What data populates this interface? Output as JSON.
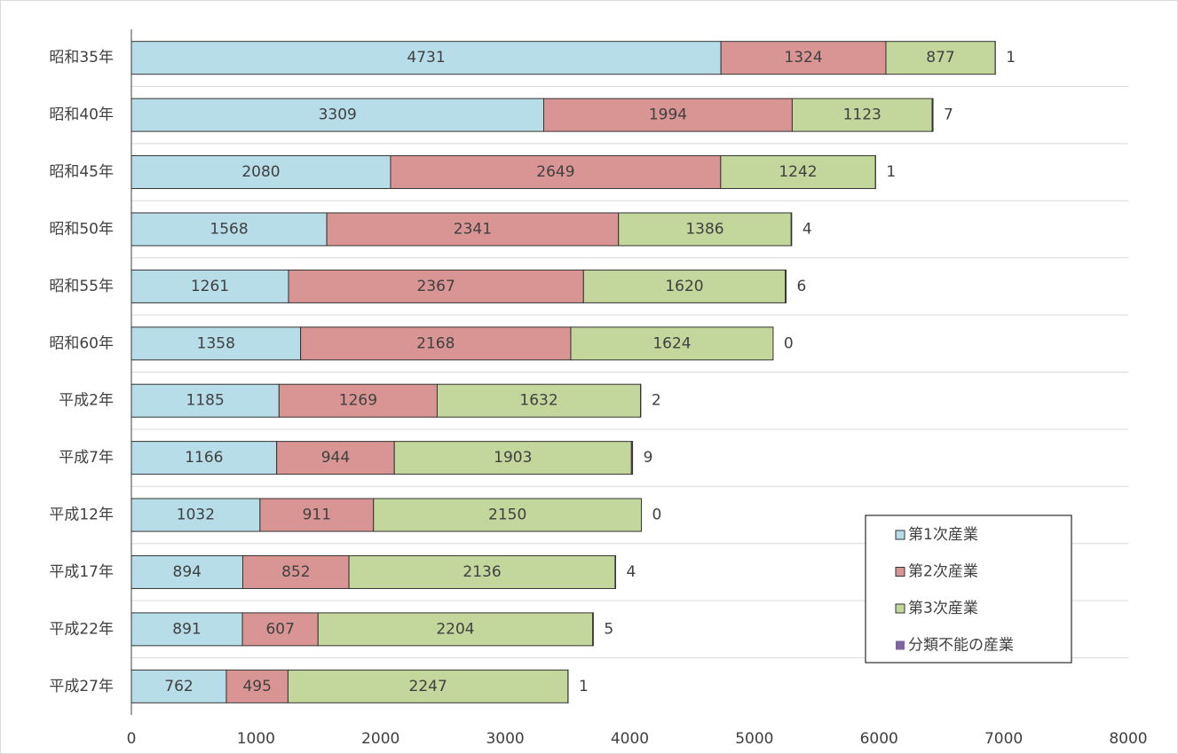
{
  "chart_data": {
    "type": "stacked-bar-horizontal",
    "categories": [
      "昭和35年",
      "昭和40年",
      "昭和45年",
      "昭和50年",
      "昭和55年",
      "昭和60年",
      "平成2年",
      "平成7年",
      "平成12年",
      "平成17年",
      "平成22年",
      "平成27年"
    ],
    "series": [
      {
        "name": "第1次産業",
        "color": "#b7dde8",
        "values": [
          4731,
          3309,
          2080,
          1568,
          1261,
          1358,
          1185,
          1166,
          1032,
          894,
          891,
          762
        ]
      },
      {
        "name": "第2次産業",
        "color": "#d99594",
        "values": [
          1324,
          1994,
          2649,
          2341,
          2367,
          2168,
          1269,
          944,
          911,
          852,
          607,
          495
        ]
      },
      {
        "name": "第3次産業",
        "color": "#c3d69b",
        "values": [
          877,
          1123,
          1242,
          1386,
          1620,
          1624,
          1632,
          1903,
          2150,
          2136,
          2204,
          2247
        ]
      },
      {
        "name": "分類不能の産業",
        "color": "#8064a2",
        "values": [
          1,
          7,
          1,
          4,
          6,
          0,
          2,
          9,
          0,
          4,
          5,
          1
        ]
      }
    ],
    "xlim": [
      0,
      8000
    ],
    "xticks": [
      0,
      1000,
      2000,
      3000,
      4000,
      5000,
      6000,
      7000,
      8000
    ],
    "legend": "lower-right",
    "grid": true
  }
}
